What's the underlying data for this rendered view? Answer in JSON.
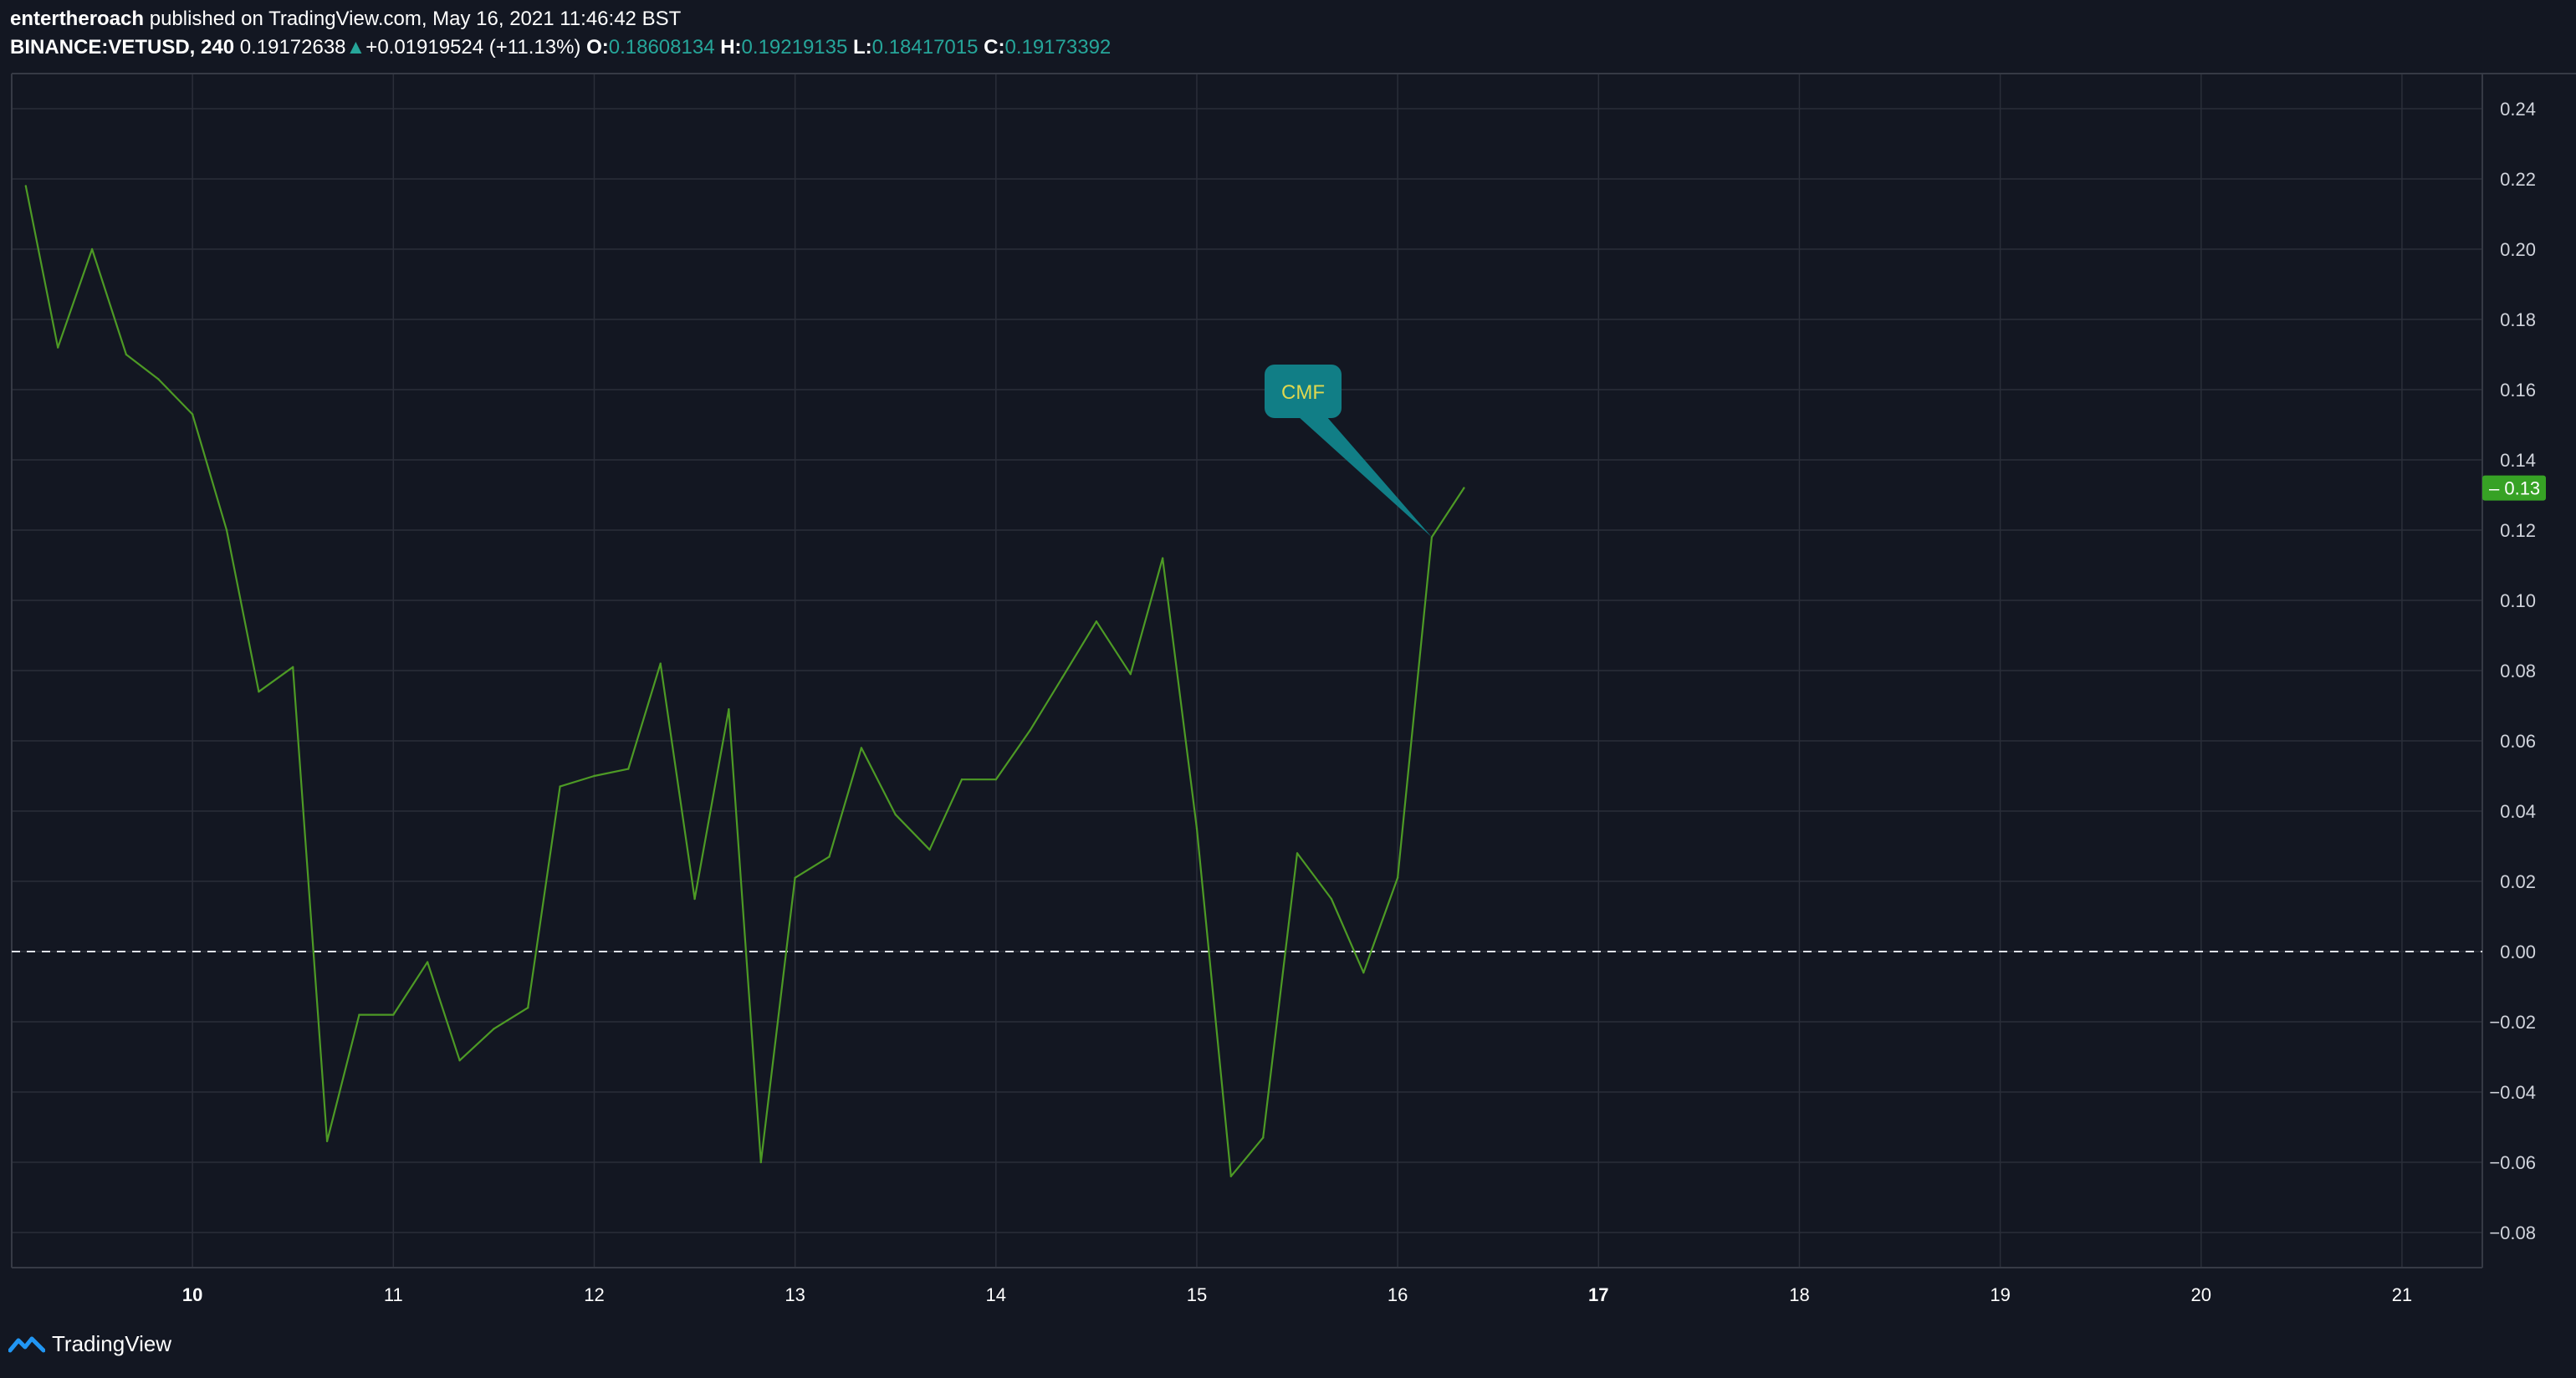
{
  "header": {
    "author": "entertheroach",
    "published_text": "published on TradingView.com, May 16, 2021 11:46:42 BST",
    "symbol": "BINANCE:VETUSD, 240",
    "last_price": "0.19172638",
    "change_arrow": "▲",
    "change": "+0.01919524 (+11.13%)",
    "o_label": "O:",
    "o_value": "0.18608134",
    "h_label": "H:",
    "h_value": "0.19219135",
    "l_label": "L:",
    "l_value": "0.18417015",
    "c_label": "C:",
    "c_value": "0.19173392"
  },
  "footer": {
    "brand": "TradingView"
  },
  "colors": {
    "background": "#131722",
    "grid": "#2a2e39",
    "line": "#4d9a25",
    "price_badge": "#37a225",
    "callout": "#117e86",
    "callout_text": "#e0d84f",
    "zero_line": "#e0e3eb",
    "axis_text": "#d1d4dc",
    "up": "#26a69a"
  },
  "chart_data": {
    "type": "line",
    "ylim": [
      -0.09,
      0.25
    ],
    "xlim": [
      9.1,
      21.4
    ],
    "y_ticks": [
      {
        "value": 0.24,
        "label": "0.24"
      },
      {
        "value": 0.22,
        "label": "0.22"
      },
      {
        "value": 0.2,
        "label": "0.20"
      },
      {
        "value": 0.18,
        "label": "0.18"
      },
      {
        "value": 0.16,
        "label": "0.16"
      },
      {
        "value": 0.14,
        "label": "0.14"
      },
      {
        "value": 0.12,
        "label": "0.12"
      },
      {
        "value": 0.1,
        "label": "0.10"
      },
      {
        "value": 0.08,
        "label": "0.08"
      },
      {
        "value": 0.06,
        "label": "0.06"
      },
      {
        "value": 0.04,
        "label": "0.04"
      },
      {
        "value": 0.02,
        "label": "0.02"
      },
      {
        "value": 0.0,
        "label": "0.00"
      },
      {
        "value": -0.02,
        "label": "−0.02"
      },
      {
        "value": -0.04,
        "label": "−0.04"
      },
      {
        "value": -0.06,
        "label": "−0.06"
      },
      {
        "value": -0.08,
        "label": "−0.08"
      }
    ],
    "x_ticks": [
      {
        "value": 10,
        "label": "10",
        "bold": true
      },
      {
        "value": 11,
        "label": "11",
        "bold": false
      },
      {
        "value": 12,
        "label": "12",
        "bold": false
      },
      {
        "value": 13,
        "label": "13",
        "bold": false
      },
      {
        "value": 14,
        "label": "14",
        "bold": false
      },
      {
        "value": 15,
        "label": "15",
        "bold": false
      },
      {
        "value": 16,
        "label": "16",
        "bold": false
      },
      {
        "value": 17,
        "label": "17",
        "bold": true
      },
      {
        "value": 18,
        "label": "18",
        "bold": false
      },
      {
        "value": 19,
        "label": "19",
        "bold": false
      },
      {
        "value": 20,
        "label": "20",
        "bold": false
      },
      {
        "value": 21,
        "label": "21",
        "bold": false
      }
    ],
    "series": [
      {
        "points": [
          [
            9.17,
            0.218
          ],
          [
            9.33,
            0.172
          ],
          [
            9.5,
            0.2
          ],
          [
            9.67,
            0.17
          ],
          [
            9.83,
            0.163
          ],
          [
            10.0,
            0.153
          ],
          [
            10.17,
            0.12
          ],
          [
            10.33,
            0.074
          ],
          [
            10.5,
            0.081
          ],
          [
            10.67,
            -0.054
          ],
          [
            10.83,
            -0.018
          ],
          [
            11.0,
            -0.018
          ],
          [
            11.17,
            -0.003
          ],
          [
            11.33,
            -0.031
          ],
          [
            11.5,
            -0.022
          ],
          [
            11.67,
            -0.016
          ],
          [
            11.83,
            0.047
          ],
          [
            12.0,
            0.05
          ],
          [
            12.17,
            0.052
          ],
          [
            12.33,
            0.082
          ],
          [
            12.5,
            0.015
          ],
          [
            12.67,
            0.069
          ],
          [
            12.83,
            -0.06
          ],
          [
            13.0,
            0.021
          ],
          [
            13.17,
            0.027
          ],
          [
            13.33,
            0.058
          ],
          [
            13.5,
            0.039
          ],
          [
            13.67,
            0.029
          ],
          [
            13.83,
            0.049
          ],
          [
            14.0,
            0.049
          ],
          [
            14.17,
            0.063
          ],
          [
            14.33,
            0.078
          ],
          [
            14.5,
            0.094
          ],
          [
            14.67,
            0.079
          ],
          [
            14.83,
            0.112
          ],
          [
            15.0,
            0.035
          ],
          [
            15.17,
            -0.064
          ],
          [
            15.33,
            -0.053
          ],
          [
            15.5,
            0.028
          ],
          [
            15.67,
            0.015
          ],
          [
            15.83,
            -0.006
          ],
          [
            16.0,
            0.021
          ],
          [
            16.17,
            0.118
          ],
          [
            16.33,
            0.132
          ]
        ]
      }
    ],
    "reference_line": 0.0,
    "last_value_label": "0.13",
    "last_value": 0.132,
    "annotation": {
      "text": "CMF",
      "anchor_x": 16.17,
      "anchor_y": 0.118
    },
    "grid": true
  }
}
